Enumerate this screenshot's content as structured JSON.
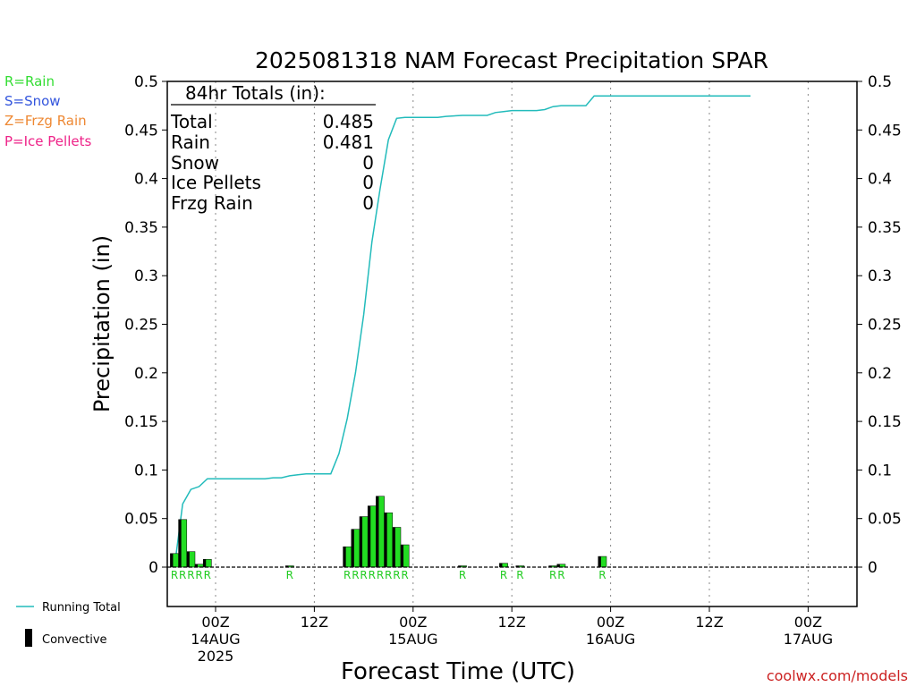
{
  "chart_data": {
    "type": "bar",
    "title": "2025081318 NAM Forecast Precipitation SPAR",
    "xlabel": "Forecast Time (UTC)",
    "ylabel": "Precipitation (in)",
    "ylim": [
      0,
      0.5
    ],
    "xlim_hours": [
      -5,
      65
    ],
    "yticks": [
      {
        "v": 0,
        "label": "0"
      },
      {
        "v": 0.05,
        "label": "0.05"
      },
      {
        "v": 0.1,
        "label": "0.1"
      },
      {
        "v": 0.15,
        "label": "0.15"
      },
      {
        "v": 0.2,
        "label": "0.2"
      },
      {
        "v": 0.25,
        "label": "0.25"
      },
      {
        "v": 0.3,
        "label": "0.3"
      },
      {
        "v": 0.35,
        "label": "0.35"
      },
      {
        "v": 0.4,
        "label": "0.4"
      },
      {
        "v": 0.45,
        "label": "0.45"
      },
      {
        "v": 0.5,
        "label": "0.5"
      }
    ],
    "xticks": [
      {
        "h": 0,
        "time": "00Z",
        "date": "14AUG",
        "year": "2025"
      },
      {
        "h": 12,
        "time": "12Z",
        "date": "",
        "year": ""
      },
      {
        "h": 24,
        "time": "00Z",
        "date": "15AUG",
        "year": ""
      },
      {
        "h": 36,
        "time": "12Z",
        "date": "",
        "year": ""
      },
      {
        "h": 48,
        "time": "00Z",
        "date": "16AUG",
        "year": ""
      },
      {
        "h": 60,
        "time": "12Z",
        "date": "",
        "year": ""
      },
      {
        "h": 72,
        "time": "00Z",
        "date": "17AUG",
        "year": ""
      }
    ],
    "bars": [
      {
        "h": -5,
        "value": 0.014,
        "ptype": "R"
      },
      {
        "h": -4,
        "value": 0.049,
        "ptype": "R"
      },
      {
        "h": -3,
        "value": 0.016,
        "ptype": "R"
      },
      {
        "h": -2,
        "value": 0.003,
        "ptype": "R"
      },
      {
        "h": -1,
        "value": 0.008,
        "ptype": "R"
      },
      {
        "h": 9,
        "value": 0.001,
        "ptype": "R"
      },
      {
        "h": 16,
        "value": 0.021,
        "ptype": "R"
      },
      {
        "h": 17,
        "value": 0.039,
        "ptype": "R"
      },
      {
        "h": 18,
        "value": 0.052,
        "ptype": "R"
      },
      {
        "h": 19,
        "value": 0.063,
        "ptype": "R"
      },
      {
        "h": 20,
        "value": 0.073,
        "ptype": "R"
      },
      {
        "h": 21,
        "value": 0.056,
        "ptype": "R"
      },
      {
        "h": 22,
        "value": 0.041,
        "ptype": "R"
      },
      {
        "h": 23,
        "value": 0.023,
        "ptype": "R"
      },
      {
        "h": 30,
        "value": 0.001,
        "ptype": "R"
      },
      {
        "h": 35,
        "value": 0.004,
        "ptype": "R"
      },
      {
        "h": 37,
        "value": 0.001,
        "ptype": "R"
      },
      {
        "h": 41,
        "value": 0.001,
        "ptype": "R"
      },
      {
        "h": 42,
        "value": 0.003,
        "ptype": "R"
      },
      {
        "h": 47,
        "value": 0.011,
        "ptype": "R"
      }
    ],
    "running_total": [
      [
        -5,
        0
      ],
      [
        -4,
        0.065
      ],
      [
        -3,
        0.08
      ],
      [
        -2,
        0.083
      ],
      [
        -1,
        0.091
      ],
      [
        0,
        0.091
      ],
      [
        6,
        0.091
      ],
      [
        7,
        0.092
      ],
      [
        8,
        0.092
      ],
      [
        9,
        0.094
      ],
      [
        10,
        0.095
      ],
      [
        11,
        0.096
      ],
      [
        12,
        0.096
      ],
      [
        14,
        0.096
      ],
      [
        15,
        0.117
      ],
      [
        16,
        0.153
      ],
      [
        17,
        0.2
      ],
      [
        18,
        0.26
      ],
      [
        19,
        0.335
      ],
      [
        20,
        0.39
      ],
      [
        21,
        0.44
      ],
      [
        22,
        0.462
      ],
      [
        23,
        0.463
      ],
      [
        24,
        0.463
      ],
      [
        27,
        0.463
      ],
      [
        28,
        0.464
      ],
      [
        30,
        0.465
      ],
      [
        33,
        0.465
      ],
      [
        34,
        0.468
      ],
      [
        35,
        0.469
      ],
      [
        36,
        0.47
      ],
      [
        39,
        0.47
      ],
      [
        40,
        0.471
      ],
      [
        41,
        0.474
      ],
      [
        42,
        0.475
      ],
      [
        45,
        0.475
      ],
      [
        46,
        0.485
      ],
      [
        65,
        0.485
      ]
    ],
    "totals": {
      "header": "84hr Totals (in):",
      "rows": [
        {
          "label": "Total",
          "value": "0.485"
        },
        {
          "label": "Rain",
          "value": "0.481"
        },
        {
          "label": "Snow",
          "value": "0"
        },
        {
          "label": "Ice Pellets",
          "value": "0"
        },
        {
          "label": "Frzg Rain",
          "value": "0"
        }
      ]
    },
    "ptype_legend": [
      {
        "text": "R=Rain",
        "color": "#33dd33"
      },
      {
        "text": "S=Snow",
        "color": "#3355dd"
      },
      {
        "text": "Z=Frzg Rain",
        "color": "#ee8833"
      },
      {
        "text": "P=Ice Pellets",
        "color": "#ee2288"
      }
    ],
    "series_legend": [
      {
        "name": "Running Total",
        "color": "#22bbbb"
      },
      {
        "name": "Convective",
        "color": "#000000"
      }
    ],
    "colors": {
      "rain_bar": "#22dd22",
      "convective": "#000000",
      "running_total": "#22bbbb",
      "ptype_label": "#22cc22"
    },
    "credit": "coolwx.com/models"
  }
}
